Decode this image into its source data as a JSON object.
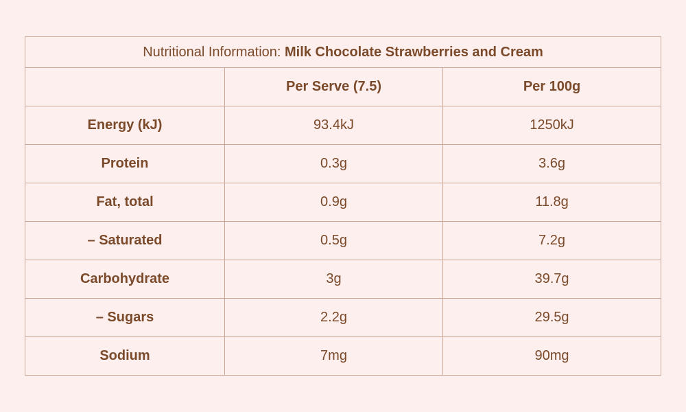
{
  "table": {
    "title_prefix": "Nutritional Information:",
    "title_product": "Milk Chocolate  Strawberries and Cream",
    "columns": [
      "",
      "Per Serve (7.5)",
      "Per 100g"
    ],
    "rows": [
      {
        "label": "Energy (kJ)",
        "per_serve": "93.4kJ",
        "per_100g": "1250kJ"
      },
      {
        "label": "Protein",
        "per_serve": "0.3g",
        "per_100g": "3.6g"
      },
      {
        "label": "Fat, total",
        "per_serve": "0.9g",
        "per_100g": "11.8g"
      },
      {
        "label": "– Saturated",
        "per_serve": "0.5g",
        "per_100g": "7.2g"
      },
      {
        "label": "Carbohydrate",
        "per_serve": "3g",
        "per_100g": "39.7g"
      },
      {
        "label": "– Sugars",
        "per_serve": "2.2g",
        "per_100g": "29.5g"
      },
      {
        "label": "Sodium",
        "per_serve": "7mg",
        "per_100g": "90mg"
      }
    ]
  },
  "colors": {
    "background": "#fdefed",
    "text": "#7a4a2b",
    "border": "#c9a89a"
  }
}
